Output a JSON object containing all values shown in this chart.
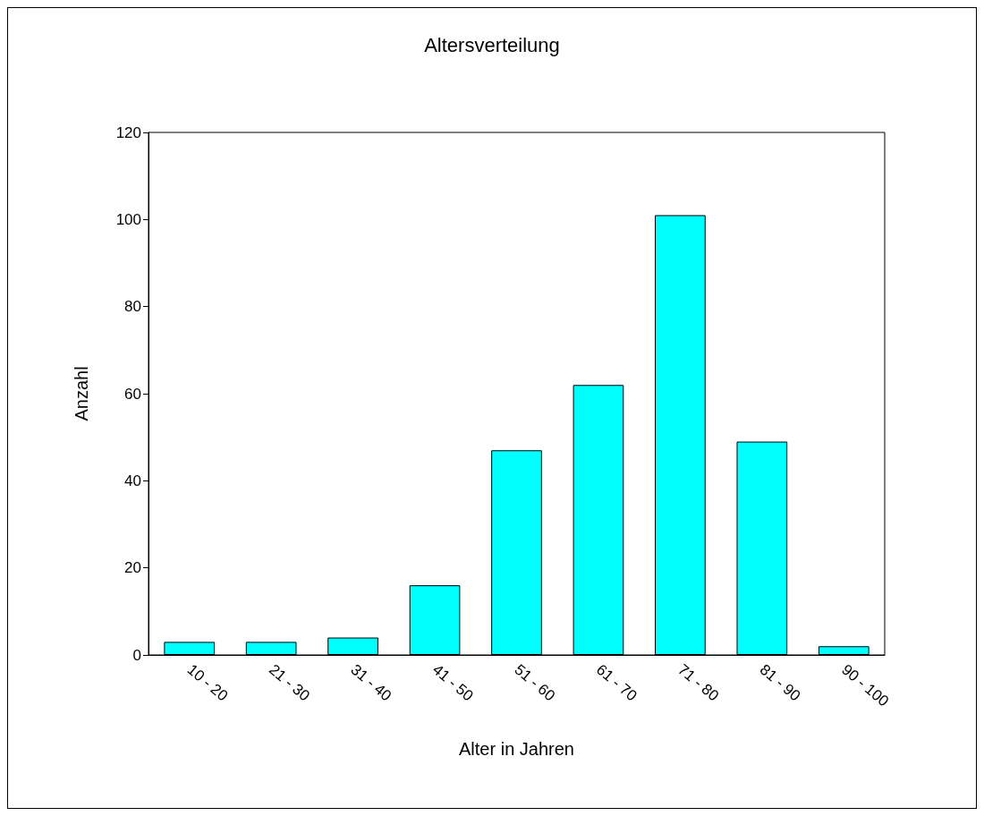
{
  "chart_data": {
    "type": "bar",
    "title": "Altersverteilung",
    "xlabel": "Alter in Jahren",
    "ylabel": "Anzahl",
    "categories": [
      "10 - 20",
      "21 - 30",
      "31 - 40",
      "41 - 50",
      "51 - 60",
      "61 - 70",
      "71 - 80",
      "81 - 90",
      "90 - 100"
    ],
    "values": [
      3,
      3,
      4,
      16,
      47,
      62,
      101,
      49,
      2
    ],
    "color": "#00ffff",
    "ylim": [
      0,
      120
    ],
    "yticks": [
      0,
      20,
      40,
      60,
      80,
      100,
      120
    ],
    "grid": false
  }
}
